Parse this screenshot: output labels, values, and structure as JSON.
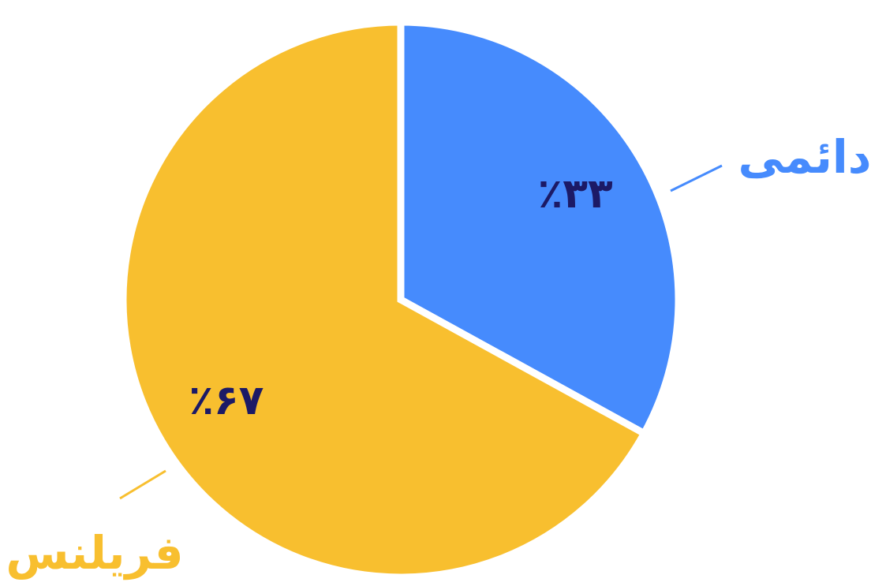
{
  "chart_data": {
    "type": "pie",
    "categories": [
      "دائمی",
      "فریلنس"
    ],
    "values": [
      33,
      67
    ],
    "value_labels": [
      "٪۳۳",
      "٪۶۷"
    ],
    "colors": [
      "#468bfd",
      "#f8bf2f"
    ]
  }
}
